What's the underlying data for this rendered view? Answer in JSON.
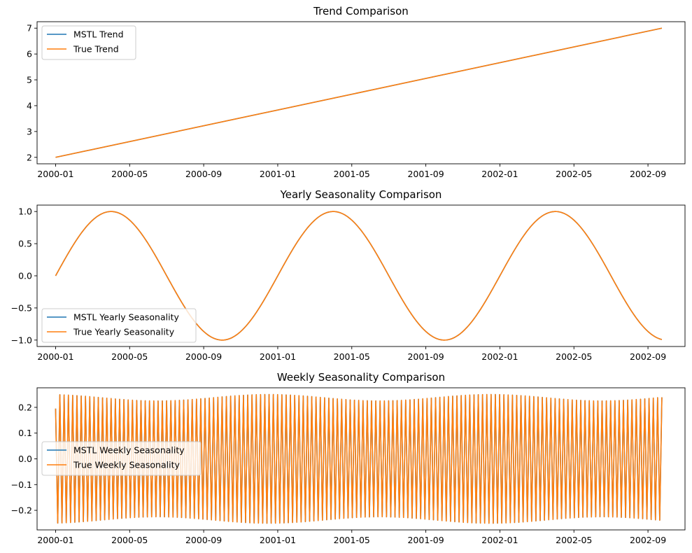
{
  "colors": {
    "mstl": "#1f77b4",
    "true": "#ff7f0e",
    "axis": "#000000",
    "legend_border": "#cccccc"
  },
  "chart_data": [
    {
      "type": "line",
      "title": "Trend Comparison",
      "xlabel": "",
      "ylabel": "",
      "x_range": [
        -1,
        34
      ],
      "ylim": [
        1.75,
        7.25
      ],
      "x_ticks": [
        0,
        4,
        8,
        12,
        16,
        20,
        24,
        28,
        32
      ],
      "x_tick_labels": [
        "2000-01",
        "2000-05",
        "2000-09",
        "2001-01",
        "2001-05",
        "2001-09",
        "2002-01",
        "2002-05",
        "2002-09"
      ],
      "y_ticks": [
        2,
        3,
        4,
        5,
        6,
        7
      ],
      "y_tick_labels": [
        "2",
        "3",
        "4",
        "5",
        "6",
        "7"
      ],
      "legend_position": "upper-left",
      "legend": [
        "MSTL Trend",
        "True Trend"
      ],
      "series": [
        {
          "name": "MSTL Trend",
          "x": [
            0,
            32.75
          ],
          "y": [
            2.0,
            7.0
          ]
        },
        {
          "name": "True Trend",
          "x": [
            0,
            32.75
          ],
          "y": [
            2.0,
            7.0
          ]
        }
      ]
    },
    {
      "type": "line",
      "title": "Yearly Seasonality Comparison",
      "xlabel": "",
      "ylabel": "",
      "x_range": [
        -1,
        34
      ],
      "ylim": [
        -1.1,
        1.1
      ],
      "x_ticks": [
        0,
        4,
        8,
        12,
        16,
        20,
        24,
        28,
        32
      ],
      "x_tick_labels": [
        "2000-01",
        "2000-05",
        "2000-09",
        "2001-01",
        "2001-05",
        "2001-09",
        "2002-01",
        "2002-05",
        "2002-09"
      ],
      "y_ticks": [
        1.0,
        0.5,
        0.0,
        -0.5,
        -1.0
      ],
      "y_tick_labels": [
        "1.0",
        "0.5",
        "0.0",
        "−0.5",
        "−1.0"
      ],
      "legend_position": "lower-left",
      "legend": [
        "MSTL Yearly Seasonality",
        "True Yearly Seasonality"
      ],
      "series": [
        {
          "name": "MSTL Yearly Seasonality",
          "function": "sin",
          "period_months": 12,
          "amplitude": 1.0,
          "x_end": 32.75
        },
        {
          "name": "True Yearly Seasonality",
          "function": "sin",
          "period_months": 12,
          "amplitude": 1.0,
          "x_end": 32.75
        }
      ]
    },
    {
      "type": "line",
      "title": "Weekly Seasonality Comparison",
      "xlabel": "",
      "ylabel": "",
      "x_range": [
        -1,
        34
      ],
      "ylim": [
        -0.276,
        0.276
      ],
      "x_ticks": [
        0,
        4,
        8,
        12,
        16,
        20,
        24,
        28,
        32
      ],
      "x_tick_labels": [
        "2000-01",
        "2000-05",
        "2000-09",
        "2001-01",
        "2001-05",
        "2001-09",
        "2002-01",
        "2002-05",
        "2002-09"
      ],
      "y_ticks": [
        0.2,
        0.1,
        0.0,
        -0.1,
        -0.2
      ],
      "y_tick_labels": [
        "0.2",
        "0.1",
        "0.0",
        "−0.1",
        "−0.2"
      ],
      "legend_position": "center-left",
      "legend": [
        "MSTL Weekly Seasonality",
        "True Weekly Seasonality"
      ],
      "series": [
        {
          "name": "MSTL Weekly Seasonality",
          "function": "weekly",
          "cycles": 142,
          "amplitude_range": [
            0.225,
            0.25
          ],
          "x_end": 32.75
        },
        {
          "name": "True Weekly Seasonality",
          "function": "weekly",
          "cycles": 142,
          "amplitude_range": [
            0.225,
            0.25
          ],
          "x_end": 32.75
        }
      ]
    }
  ]
}
